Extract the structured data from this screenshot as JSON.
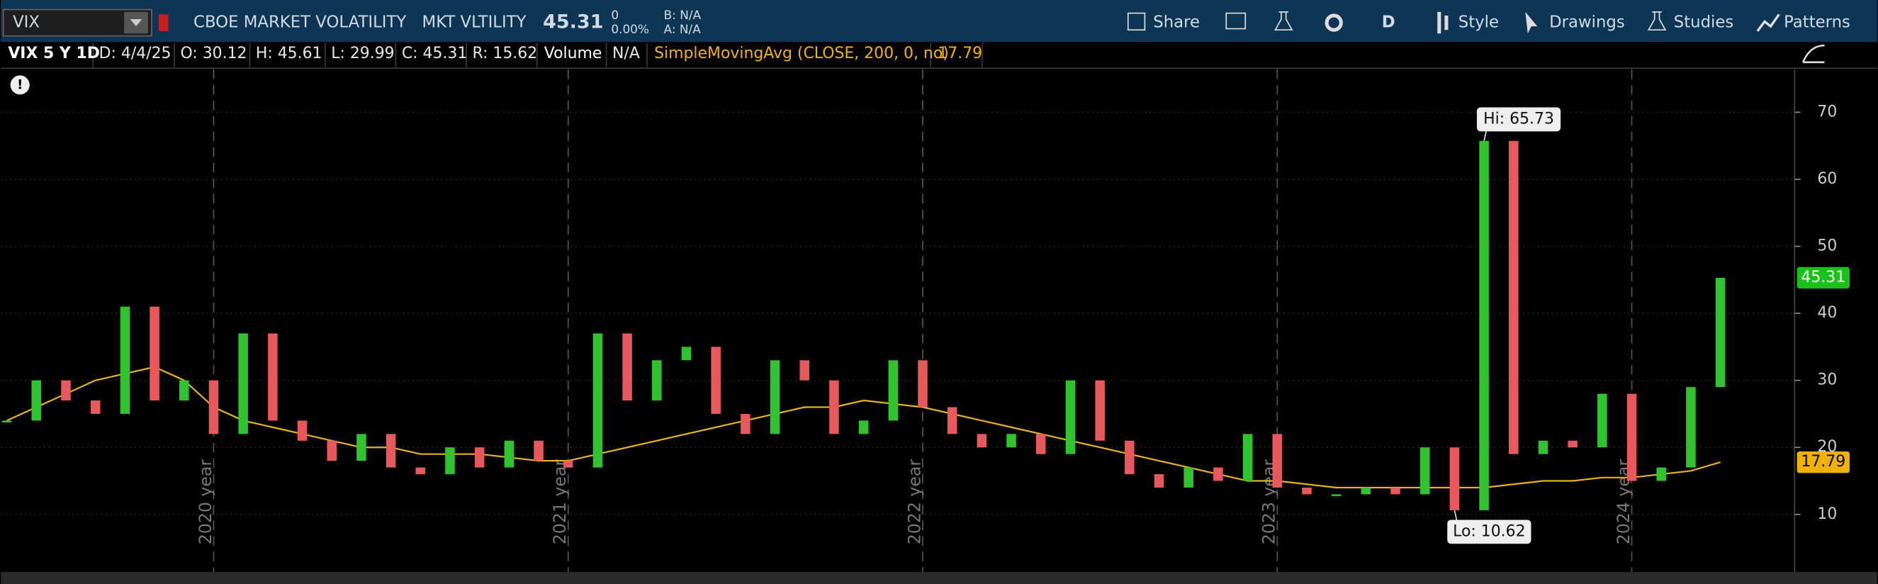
{
  "toolbar": {
    "symbol": "VIX",
    "description": "CBOE MARKET VOLATILITY",
    "short_name": "MKT VLTILITY",
    "last": "45.31",
    "change": "0",
    "change_pct": "0.00%",
    "bid": "B: N/A",
    "ask": "A: N/A",
    "period": "D",
    "buttons": [
      "Share",
      "Style",
      "Drawings",
      "Studies",
      "Patterns"
    ]
  },
  "header": {
    "title": "VIX 5 Y 1D",
    "date": "D: 4/4/25",
    "open": "O: 30.12",
    "high": "H: 45.61",
    "low": "L: 29.99",
    "close": "C: 45.31",
    "range": "R: 15.62",
    "volume": "Volume",
    "volume_value": "N/A",
    "study": "SimpleMovingAvg (CLOSE, 200, 0, no)",
    "study_value": "17.79"
  },
  "chart_data": {
    "type": "candlestick",
    "categories": [
      null,
      null,
      null,
      null,
      null,
      null,
      null,
      "2020 year",
      null,
      null,
      null,
      null,
      null,
      null,
      null,
      null,
      null,
      null,
      null,
      "2021 year",
      null,
      null,
      null,
      null,
      null,
      null,
      null,
      null,
      null,
      null,
      null,
      "2022 year",
      null,
      null,
      null,
      null,
      null,
      null,
      null,
      null,
      null,
      null,
      null,
      "2023 year",
      null,
      null,
      null,
      null,
      null,
      null,
      null,
      null,
      null,
      null,
      null,
      "2024 year",
      null,
      null,
      null
    ],
    "series": [
      {
        "name": "VIX",
        "color": "#2fc42f",
        "down_color": "#e8585d",
        "values": [
          24,
          30,
          27,
          25,
          41,
          27,
          30,
          22,
          37,
          24,
          21,
          18,
          22,
          17,
          16,
          20,
          17,
          21,
          18,
          17,
          37,
          27,
          33,
          35,
          25,
          22,
          33,
          30,
          22,
          24,
          33,
          26,
          22,
          20,
          22,
          19,
          30,
          21,
          16,
          14,
          17,
          15,
          22,
          14,
          13,
          13,
          14,
          13,
          20,
          10.62,
          65.73,
          19,
          21,
          20,
          28,
          15,
          17,
          29,
          45.31
        ]
      },
      {
        "name": "SimpleMovingAvg",
        "color": "#e8b21c",
        "values": [
          24,
          26,
          28,
          30,
          31,
          32,
          30,
          26,
          24,
          23,
          22,
          21,
          20,
          20,
          19,
          19,
          19,
          18.5,
          18,
          18,
          19,
          20,
          21,
          22,
          23,
          24,
          25,
          26,
          26,
          27,
          26.5,
          26,
          25,
          24,
          23,
          22,
          21,
          20,
          19,
          18,
          17,
          16,
          15,
          15,
          14.5,
          14,
          14,
          14,
          14,
          14,
          14,
          14.5,
          15,
          15,
          15.5,
          15.5,
          16,
          16.5,
          17.79
        ]
      }
    ],
    "annotations": [
      "Hi: 65.73",
      "Lo: 10.62"
    ],
    "ylim": [
      1.4,
      76.4
    ],
    "yticks": [
      10,
      20,
      30,
      40,
      50,
      60,
      70
    ],
    "grid": true
  }
}
